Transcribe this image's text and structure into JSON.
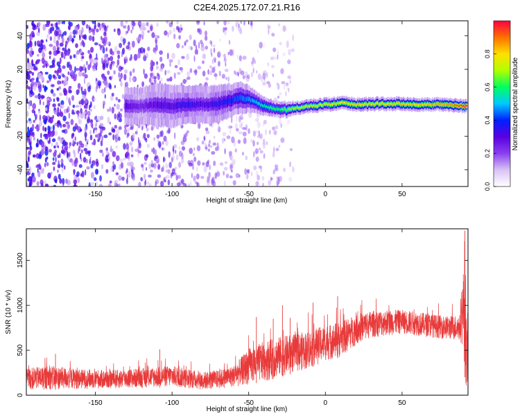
{
  "figure": {
    "title": "C2E4.2025.172.07.21.R16"
  },
  "chart_data": [
    {
      "type": "heatmap",
      "xlabel": "Height of straight line (km)",
      "ylabel": "Frequency (Hz)",
      "xlim": [
        -195,
        93
      ],
      "ylim": [
        -50,
        49
      ],
      "xticks": [
        -150,
        -100,
        -50,
        0,
        50
      ],
      "yticks": [
        -40,
        -20,
        0,
        20,
        40
      ],
      "xtick_labels": [
        "-150",
        "-100",
        "-50",
        "0",
        "50"
      ],
      "ytick_labels": [
        "-40",
        "-20",
        "0",
        "20",
        "40"
      ],
      "colorbar": {
        "label": "Normalized spectral amplitude",
        "range": [
          0,
          1
        ],
        "ticks": [
          0,
          0.2,
          0.4,
          0.6,
          0.8
        ],
        "tick_labels": [
          "0.0",
          "0.2",
          "0.4",
          "0.6",
          "0.8"
        ],
        "colormap": [
          "#ffffff",
          "#d9c2f5",
          "#8a3ff0",
          "#5a00e0",
          "#0020ff",
          "#00c8ff",
          "#00ff60",
          "#b0ff00",
          "#ffe000",
          "#ff7000",
          "#ff0040"
        ]
      },
      "ridge": {
        "x": [
          -131,
          -120,
          -110,
          -100,
          -90,
          -80,
          -70,
          -60,
          -55,
          -50,
          -45,
          -40,
          -35,
          -30,
          -25,
          -20,
          -10,
          0,
          10,
          20,
          40,
          60,
          80,
          90
        ],
        "freq": [
          -2,
          -2,
          -1,
          -2,
          -1,
          -1,
          -0.5,
          2,
          3,
          2,
          0,
          -2,
          -3,
          -4,
          -4,
          -3,
          -2,
          -1,
          0,
          -1,
          -0.5,
          -1,
          -1,
          -2
        ],
        "amplitude": [
          0.3,
          0.25,
          0.3,
          0.3,
          0.35,
          0.3,
          0.35,
          0.4,
          0.45,
          0.45,
          0.5,
          0.55,
          0.6,
          0.6,
          0.65,
          0.7,
          0.72,
          0.75,
          0.78,
          0.8,
          0.8,
          0.8,
          0.85,
          0.95
        ],
        "halfwidth": [
          7,
          7,
          8,
          8,
          7,
          7,
          7,
          6,
          6,
          5,
          4,
          3.5,
          3,
          3,
          3,
          2.5,
          2.5,
          2.5,
          2.5,
          2.5,
          2.5,
          2.5,
          2.5,
          2.5
        ]
      },
      "background_noise_extent_x": [
        -195,
        -20
      ]
    },
    {
      "type": "line",
      "xlabel": "Height of straight line (km)",
      "ylabel": "SNR (10 * v/v)",
      "xlim": [
        -195,
        93
      ],
      "ylim": [
        0,
        1850
      ],
      "xticks": [
        -150,
        -100,
        -50,
        0,
        50
      ],
      "yticks": [
        0,
        500,
        1000,
        1500
      ],
      "xtick_labels": [
        "-150",
        "-100",
        "-50",
        "0",
        "50"
      ],
      "ytick_labels": [
        "0",
        "500",
        "1000",
        "1500"
      ],
      "line_color": "#e83a3a",
      "envelope": {
        "x": [
          -195,
          -180,
          -160,
          -140,
          -120,
          -100,
          -80,
          -70,
          -60,
          -55,
          -50,
          -40,
          -30,
          -20,
          -10,
          0,
          10,
          20,
          30,
          40,
          50,
          60,
          70,
          80,
          88,
          90,
          91,
          92
        ],
        "low": [
          60,
          60,
          70,
          70,
          80,
          90,
          60,
          70,
          90,
          100,
          120,
          150,
          200,
          250,
          300,
          380,
          420,
          560,
          640,
          660,
          680,
          660,
          640,
          620,
          600,
          500,
          200,
          50
        ],
        "high": [
          300,
          330,
          290,
          280,
          300,
          330,
          260,
          280,
          330,
          420,
          520,
          600,
          650,
          680,
          720,
          780,
          820,
          900,
          940,
          950,
          950,
          930,
          900,
          880,
          900,
          1400,
          1850,
          800
        ]
      },
      "spikes": [
        {
          "x": -176,
          "y": 460
        },
        {
          "x": -108,
          "y": 510
        },
        {
          "x": -45,
          "y": 870
        },
        {
          "x": -34,
          "y": 850
        },
        {
          "x": -28,
          "y": 1000
        },
        {
          "x": -23,
          "y": 860
        },
        {
          "x": -8,
          "y": 1030
        },
        {
          "x": 8,
          "y": 1100
        },
        {
          "x": 91,
          "y": 1830
        }
      ]
    }
  ]
}
